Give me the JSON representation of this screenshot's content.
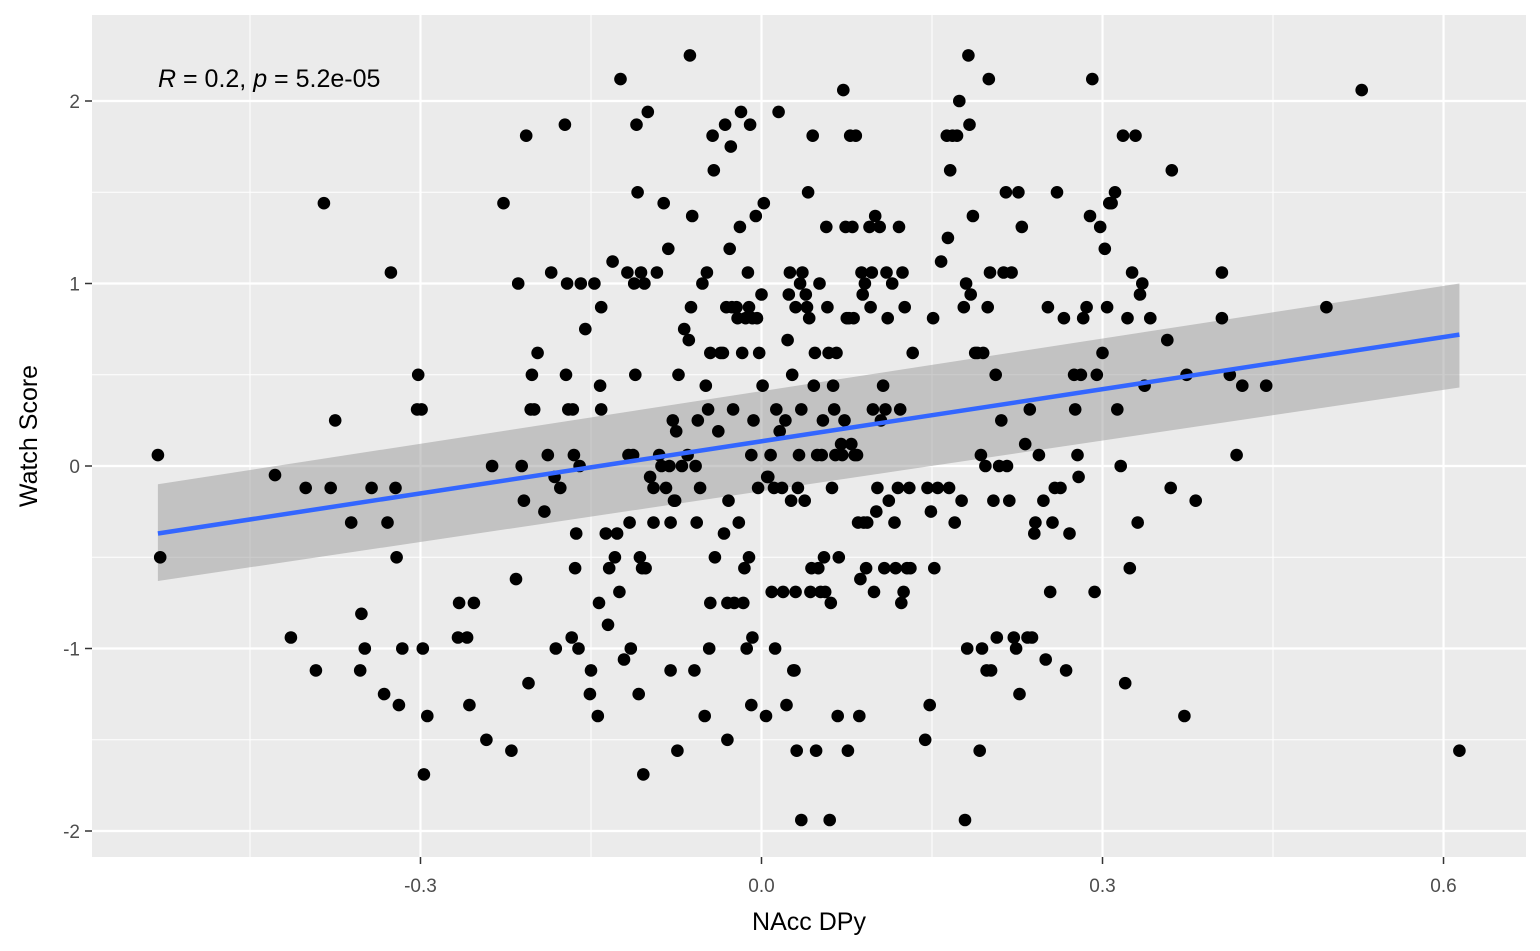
{
  "chart_data": {
    "type": "scatter",
    "xlabel": "NAcc DPy",
    "ylabel": "Watch Score",
    "xlim": [
      -0.59,
      0.65
    ],
    "ylim": [
      -2.15,
      2.45
    ],
    "x_ticks": [
      -0.3,
      0.0,
      0.3,
      0.6
    ],
    "x_tick_labels": [
      "-0.3",
      "0.0",
      "0.3",
      "0.6"
    ],
    "y_ticks": [
      -2,
      -1,
      0,
      1,
      2
    ],
    "y_tick_labels": [
      "-2",
      "-1",
      "0",
      "1",
      "2"
    ],
    "grid": true,
    "annotation": {
      "r_symbol": "R",
      "r_text": " = 0.2, ",
      "p_symbol": "p",
      "p_text": " = 5.2e-05"
    },
    "regression": {
      "x_start": -0.531,
      "y_start": -0.37,
      "x_end": 0.614,
      "y_end": 0.72,
      "band_lower": [
        -0.63,
        0.43
      ],
      "band_upper": [
        -0.1,
        1.0
      ],
      "line_color": "#3366FF",
      "band_color": "#999999"
    },
    "point_color": "#000000",
    "points": [
      [
        -0.531,
        0.06
      ],
      [
        -0.529,
        -0.5
      ],
      [
        -0.428,
        -0.05
      ],
      [
        -0.401,
        -0.12
      ],
      [
        -0.414,
        -0.94
      ],
      [
        -0.392,
        -1.12
      ],
      [
        -0.385,
        1.44
      ],
      [
        -0.379,
        -0.12
      ],
      [
        -0.375,
        0.25
      ],
      [
        -0.361,
        -0.31
      ],
      [
        -0.352,
        -0.81
      ],
      [
        -0.353,
        -1.12
      ],
      [
        -0.349,
        -1.0
      ],
      [
        -0.343,
        -0.12
      ],
      [
        -0.332,
        -1.25
      ],
      [
        -0.329,
        -0.31
      ],
      [
        -0.326,
        1.06
      ],
      [
        -0.322,
        -0.12
      ],
      [
        -0.321,
        -0.5
      ],
      [
        -0.319,
        -1.31
      ],
      [
        -0.316,
        -1.0
      ],
      [
        -0.303,
        0.31
      ],
      [
        -0.302,
        0.5
      ],
      [
        -0.299,
        0.31
      ],
      [
        -0.298,
        -1.0
      ],
      [
        -0.297,
        -1.69
      ],
      [
        -0.294,
        -1.37
      ],
      [
        -0.267,
        -0.94
      ],
      [
        -0.266,
        -0.75
      ],
      [
        -0.259,
        -0.94
      ],
      [
        -0.257,
        -1.31
      ],
      [
        -0.253,
        -0.75
      ],
      [
        -0.242,
        -1.5
      ],
      [
        -0.237,
        0.0
      ],
      [
        -0.227,
        1.44
      ],
      [
        -0.22,
        -1.56
      ],
      [
        -0.216,
        -0.62
      ],
      [
        -0.214,
        1.0
      ],
      [
        -0.211,
        0.0
      ],
      [
        -0.209,
        -0.19
      ],
      [
        -0.207,
        1.81
      ],
      [
        -0.205,
        -1.19
      ],
      [
        -0.203,
        0.31
      ],
      [
        -0.202,
        0.5
      ],
      [
        -0.2,
        0.31
      ],
      [
        -0.197,
        0.62
      ],
      [
        -0.191,
        -0.25
      ],
      [
        -0.188,
        0.06
      ],
      [
        -0.185,
        1.06
      ],
      [
        -0.182,
        -0.06
      ],
      [
        -0.181,
        -1.0
      ],
      [
        -0.177,
        -0.12
      ],
      [
        -0.173,
        1.87
      ],
      [
        -0.172,
        0.5
      ],
      [
        -0.17,
        0.31
      ],
      [
        -0.171,
        1.0
      ],
      [
        -0.167,
        -0.94
      ],
      [
        -0.166,
        0.31
      ],
      [
        -0.165,
        0.06
      ],
      [
        -0.164,
        -0.56
      ],
      [
        -0.163,
        -0.37
      ],
      [
        -0.161,
        -1.0
      ],
      [
        -0.16,
        0.0
      ],
      [
        -0.159,
        1.0
      ],
      [
        -0.155,
        0.75
      ],
      [
        -0.151,
        -1.25
      ],
      [
        -0.15,
        -1.12
      ],
      [
        -0.147,
        1.0
      ],
      [
        -0.144,
        -1.37
      ],
      [
        -0.143,
        -0.75
      ],
      [
        -0.142,
        0.44
      ],
      [
        -0.141,
        0.31
      ],
      [
        -0.141,
        0.87
      ],
      [
        -0.137,
        -0.37
      ],
      [
        -0.135,
        -0.87
      ],
      [
        -0.134,
        -0.56
      ],
      [
        -0.131,
        1.12
      ],
      [
        -0.129,
        -0.5
      ],
      [
        -0.127,
        -0.37
      ],
      [
        -0.125,
        -0.69
      ],
      [
        -0.124,
        2.12
      ],
      [
        -0.121,
        -1.06
      ],
      [
        -0.118,
        1.06
      ],
      [
        -0.117,
        0.06
      ],
      [
        -0.116,
        -0.31
      ],
      [
        -0.115,
        -1.0
      ],
      [
        -0.113,
        0.06
      ],
      [
        -0.112,
        1.0
      ],
      [
        -0.111,
        0.5
      ],
      [
        -0.11,
        1.87
      ],
      [
        -0.109,
        1.5
      ],
      [
        -0.108,
        -1.25
      ],
      [
        -0.107,
        -0.5
      ],
      [
        -0.106,
        1.06
      ],
      [
        -0.105,
        -0.56
      ],
      [
        -0.104,
        -1.69
      ],
      [
        -0.103,
        1.0
      ],
      [
        -0.102,
        -0.56
      ],
      [
        -0.1,
        1.94
      ],
      [
        -0.098,
        -0.06
      ],
      [
        -0.095,
        -0.31
      ],
      [
        -0.095,
        -0.12
      ],
      [
        -0.092,
        1.06
      ],
      [
        -0.09,
        0.06
      ],
      [
        -0.088,
        0.0
      ],
      [
        -0.086,
        1.44
      ],
      [
        -0.084,
        -0.12
      ],
      [
        -0.082,
        1.19
      ],
      [
        -0.081,
        0.0
      ],
      [
        -0.08,
        -1.12
      ],
      [
        -0.08,
        -0.31
      ],
      [
        -0.078,
        0.25
      ],
      [
        -0.077,
        -0.19
      ],
      [
        -0.076,
        -0.19
      ],
      [
        -0.075,
        0.19
      ],
      [
        -0.074,
        -1.56
      ],
      [
        -0.073,
        0.5
      ],
      [
        -0.07,
        0.0
      ],
      [
        -0.068,
        0.75
      ],
      [
        -0.065,
        0.06
      ],
      [
        -0.064,
        0.69
      ],
      [
        -0.063,
        2.25
      ],
      [
        -0.062,
        0.87
      ],
      [
        -0.061,
        1.37
      ],
      [
        -0.059,
        -1.12
      ],
      [
        -0.058,
        0.0
      ],
      [
        -0.057,
        -0.31
      ],
      [
        -0.056,
        0.25
      ],
      [
        -0.054,
        -0.12
      ],
      [
        -0.052,
        1.0
      ],
      [
        -0.05,
        -1.37
      ],
      [
        -0.049,
        0.44
      ],
      [
        -0.048,
        1.06
      ],
      [
        -0.047,
        0.31
      ],
      [
        -0.046,
        -1.0
      ],
      [
        -0.045,
        0.62
      ],
      [
        -0.045,
        -0.75
      ],
      [
        -0.043,
        1.81
      ],
      [
        -0.042,
        1.62
      ],
      [
        -0.041,
        -0.5
      ],
      [
        -0.038,
        0.19
      ],
      [
        -0.036,
        0.62
      ],
      [
        -0.034,
        0.62
      ],
      [
        -0.033,
        -0.37
      ],
      [
        -0.032,
        1.87
      ],
      [
        -0.031,
        0.87
      ],
      [
        -0.03,
        -1.5
      ],
      [
        -0.03,
        -0.75
      ],
      [
        -0.029,
        -0.19
      ],
      [
        -0.028,
        1.19
      ],
      [
        -0.027,
        1.75
      ],
      [
        -0.026,
        0.87
      ],
      [
        -0.025,
        0.31
      ],
      [
        -0.024,
        -0.75
      ],
      [
        -0.022,
        0.87
      ],
      [
        -0.021,
        0.81
      ],
      [
        -0.02,
        -0.31
      ],
      [
        -0.019,
        1.31
      ],
      [
        -0.018,
        1.94
      ],
      [
        -0.017,
        0.62
      ],
      [
        -0.016,
        -0.75
      ],
      [
        -0.015,
        -0.56
      ],
      [
        -0.014,
        0.81
      ],
      [
        -0.013,
        -1.0
      ],
      [
        -0.012,
        1.06
      ],
      [
        -0.011,
        0.87
      ],
      [
        -0.011,
        -0.5
      ],
      [
        -0.01,
        1.87
      ],
      [
        -0.009,
        -1.31
      ],
      [
        -0.009,
        0.06
      ],
      [
        -0.008,
        -0.94
      ],
      [
        -0.008,
        0.81
      ],
      [
        -0.007,
        0.25
      ],
      [
        -0.005,
        1.37
      ],
      [
        -0.004,
        0.81
      ],
      [
        -0.003,
        -0.12
      ],
      [
        -0.002,
        0.62
      ],
      [
        0.0,
        0.94
      ],
      [
        0.001,
        0.44
      ],
      [
        0.002,
        1.44
      ],
      [
        0.004,
        -1.37
      ],
      [
        0.005,
        -0.06
      ],
      [
        0.006,
        -0.06
      ],
      [
        0.008,
        0.06
      ],
      [
        0.009,
        -0.69
      ],
      [
        0.011,
        -0.12
      ],
      [
        0.012,
        -1.0
      ],
      [
        0.013,
        0.31
      ],
      [
        0.015,
        1.94
      ],
      [
        0.016,
        0.19
      ],
      [
        0.018,
        -0.12
      ],
      [
        0.019,
        -0.69
      ],
      [
        0.021,
        0.25
      ],
      [
        0.022,
        -1.31
      ],
      [
        0.023,
        0.69
      ],
      [
        0.024,
        0.94
      ],
      [
        0.025,
        1.06
      ],
      [
        0.026,
        -0.19
      ],
      [
        0.027,
        0.5
      ],
      [
        0.028,
        -1.12
      ],
      [
        0.029,
        -1.12
      ],
      [
        0.03,
        -0.69
      ],
      [
        0.03,
        0.87
      ],
      [
        0.031,
        -1.56
      ],
      [
        0.032,
        -0.12
      ],
      [
        0.033,
        0.06
      ],
      [
        0.034,
        1.0
      ],
      [
        0.035,
        -1.94
      ],
      [
        0.035,
        0.31
      ],
      [
        0.036,
        1.06
      ],
      [
        0.038,
        -0.19
      ],
      [
        0.039,
        0.94
      ],
      [
        0.04,
        0.87
      ],
      [
        0.041,
        1.5
      ],
      [
        0.042,
        0.81
      ],
      [
        0.043,
        -0.69
      ],
      [
        0.044,
        -0.56
      ],
      [
        0.045,
        1.81
      ],
      [
        0.046,
        0.44
      ],
      [
        0.047,
        0.62
      ],
      [
        0.048,
        -1.56
      ],
      [
        0.049,
        0.06
      ],
      [
        0.05,
        -0.56
      ],
      [
        0.051,
        1.0
      ],
      [
        0.052,
        -0.69
      ],
      [
        0.053,
        0.06
      ],
      [
        0.054,
        0.25
      ],
      [
        0.055,
        -0.5
      ],
      [
        0.056,
        -0.69
      ],
      [
        0.057,
        1.31
      ],
      [
        0.058,
        0.87
      ],
      [
        0.059,
        0.62
      ],
      [
        0.06,
        -1.94
      ],
      [
        0.061,
        -0.75
      ],
      [
        0.062,
        -0.12
      ],
      [
        0.063,
        0.44
      ],
      [
        0.064,
        0.31
      ],
      [
        0.065,
        0.06
      ],
      [
        0.066,
        0.62
      ],
      [
        0.067,
        -1.37
      ],
      [
        0.068,
        -0.5
      ],
      [
        0.07,
        0.12
      ],
      [
        0.071,
        0.06
      ],
      [
        0.072,
        2.06
      ],
      [
        0.073,
        0.25
      ],
      [
        0.074,
        1.31
      ],
      [
        0.075,
        0.81
      ],
      [
        0.076,
        -1.56
      ],
      [
        0.077,
        0.81
      ],
      [
        0.078,
        1.81
      ],
      [
        0.079,
        0.12
      ],
      [
        0.08,
        1.31
      ],
      [
        0.081,
        0.81
      ],
      [
        0.082,
        0.06
      ],
      [
        0.083,
        1.81
      ],
      [
        0.084,
        0.06
      ],
      [
        0.085,
        -0.31
      ],
      [
        0.086,
        -1.37
      ],
      [
        0.087,
        -0.62
      ],
      [
        0.088,
        1.06
      ],
      [
        0.089,
        0.94
      ],
      [
        0.09,
        -0.31
      ],
      [
        0.091,
        1.0
      ],
      [
        0.092,
        -0.56
      ],
      [
        0.093,
        -0.31
      ],
      [
        0.095,
        1.31
      ],
      [
        0.096,
        0.87
      ],
      [
        0.097,
        1.06
      ],
      [
        0.098,
        0.31
      ],
      [
        0.099,
        -0.69
      ],
      [
        0.1,
        1.37
      ],
      [
        0.101,
        -0.25
      ],
      [
        0.102,
        -0.12
      ],
      [
        0.104,
        1.31
      ],
      [
        0.105,
        0.25
      ],
      [
        0.107,
        0.44
      ],
      [
        0.108,
        -0.56
      ],
      [
        0.109,
        0.31
      ],
      [
        0.11,
        1.06
      ],
      [
        0.111,
        0.81
      ],
      [
        0.112,
        -0.19
      ],
      [
        0.115,
        1.0
      ],
      [
        0.117,
        -0.31
      ],
      [
        0.118,
        -0.56
      ],
      [
        0.12,
        -0.12
      ],
      [
        0.121,
        1.31
      ],
      [
        0.122,
        0.31
      ],
      [
        0.123,
        -0.75
      ],
      [
        0.124,
        1.06
      ],
      [
        0.125,
        -0.69
      ],
      [
        0.126,
        0.87
      ],
      [
        0.128,
        -0.56
      ],
      [
        0.13,
        -0.12
      ],
      [
        0.131,
        -0.56
      ],
      [
        0.133,
        0.62
      ],
      [
        0.144,
        -1.5
      ],
      [
        0.146,
        -0.12
      ],
      [
        0.148,
        -1.31
      ],
      [
        0.149,
        -0.25
      ],
      [
        0.151,
        0.81
      ],
      [
        0.152,
        -0.56
      ],
      [
        0.155,
        -0.12
      ],
      [
        0.158,
        1.12
      ],
      [
        0.163,
        1.81
      ],
      [
        0.164,
        1.25
      ],
      [
        0.165,
        -0.12
      ],
      [
        0.166,
        1.62
      ],
      [
        0.168,
        1.81
      ],
      [
        0.17,
        -0.31
      ],
      [
        0.172,
        1.81
      ],
      [
        0.174,
        2.0
      ],
      [
        0.176,
        -0.19
      ],
      [
        0.178,
        0.87
      ],
      [
        0.179,
        -1.94
      ],
      [
        0.18,
        1.0
      ],
      [
        0.181,
        -1.0
      ],
      [
        0.182,
        2.25
      ],
      [
        0.183,
        1.87
      ],
      [
        0.184,
        0.94
      ],
      [
        0.186,
        1.37
      ],
      [
        0.188,
        0.62
      ],
      [
        0.19,
        0.62
      ],
      [
        0.192,
        -1.56
      ],
      [
        0.193,
        0.06
      ],
      [
        0.194,
        -1.0
      ],
      [
        0.195,
        0.62
      ],
      [
        0.197,
        0.0
      ],
      [
        0.198,
        -1.12
      ],
      [
        0.199,
        0.87
      ],
      [
        0.2,
        2.12
      ],
      [
        0.201,
        1.06
      ],
      [
        0.202,
        -1.12
      ],
      [
        0.204,
        -0.19
      ],
      [
        0.206,
        0.5
      ],
      [
        0.207,
        -0.94
      ],
      [
        0.209,
        0.0
      ],
      [
        0.211,
        0.25
      ],
      [
        0.213,
        1.06
      ],
      [
        0.215,
        1.5
      ],
      [
        0.216,
        0.0
      ],
      [
        0.218,
        -0.19
      ],
      [
        0.22,
        1.06
      ],
      [
        0.222,
        -0.94
      ],
      [
        0.224,
        -1.0
      ],
      [
        0.226,
        1.5
      ],
      [
        0.227,
        -1.25
      ],
      [
        0.229,
        1.31
      ],
      [
        0.232,
        0.12
      ],
      [
        0.234,
        -0.94
      ],
      [
        0.236,
        0.31
      ],
      [
        0.238,
        -0.94
      ],
      [
        0.24,
        -0.37
      ],
      [
        0.241,
        -0.31
      ],
      [
        0.244,
        0.06
      ],
      [
        0.248,
        -0.19
      ],
      [
        0.25,
        -1.06
      ],
      [
        0.252,
        0.87
      ],
      [
        0.254,
        -0.69
      ],
      [
        0.256,
        -0.31
      ],
      [
        0.258,
        -0.12
      ],
      [
        0.26,
        1.5
      ],
      [
        0.263,
        -0.12
      ],
      [
        0.266,
        0.81
      ],
      [
        0.268,
        -1.12
      ],
      [
        0.271,
        -0.37
      ],
      [
        0.275,
        0.5
      ],
      [
        0.276,
        0.31
      ],
      [
        0.278,
        0.06
      ],
      [
        0.279,
        -0.06
      ],
      [
        0.281,
        0.5
      ],
      [
        0.283,
        0.81
      ],
      [
        0.286,
        0.87
      ],
      [
        0.289,
        1.37
      ],
      [
        0.291,
        2.12
      ],
      [
        0.293,
        -0.69
      ],
      [
        0.295,
        0.5
      ],
      [
        0.298,
        1.31
      ],
      [
        0.3,
        0.62
      ],
      [
        0.302,
        1.19
      ],
      [
        0.304,
        0.87
      ],
      [
        0.306,
        1.44
      ],
      [
        0.308,
        1.44
      ],
      [
        0.311,
        1.5
      ],
      [
        0.313,
        0.31
      ],
      [
        0.316,
        0.0
      ],
      [
        0.318,
        1.81
      ],
      [
        0.32,
        -1.19
      ],
      [
        0.322,
        0.81
      ],
      [
        0.324,
        -0.56
      ],
      [
        0.326,
        1.06
      ],
      [
        0.329,
        1.81
      ],
      [
        0.331,
        -0.31
      ],
      [
        0.333,
        0.94
      ],
      [
        0.335,
        1.0
      ],
      [
        0.337,
        0.44
      ],
      [
        0.342,
        0.81
      ],
      [
        0.357,
        0.69
      ],
      [
        0.36,
        -0.12
      ],
      [
        0.361,
        1.62
      ],
      [
        0.372,
        -1.37
      ],
      [
        0.374,
        0.5
      ],
      [
        0.382,
        -0.19
      ],
      [
        0.405,
        1.06
      ],
      [
        0.405,
        0.81
      ],
      [
        0.412,
        0.5
      ],
      [
        0.418,
        0.06
      ],
      [
        0.423,
        0.44
      ],
      [
        0.444,
        0.44
      ],
      [
        0.497,
        0.87
      ],
      [
        0.528,
        2.06
      ],
      [
        0.614,
        -1.56
      ]
    ]
  }
}
